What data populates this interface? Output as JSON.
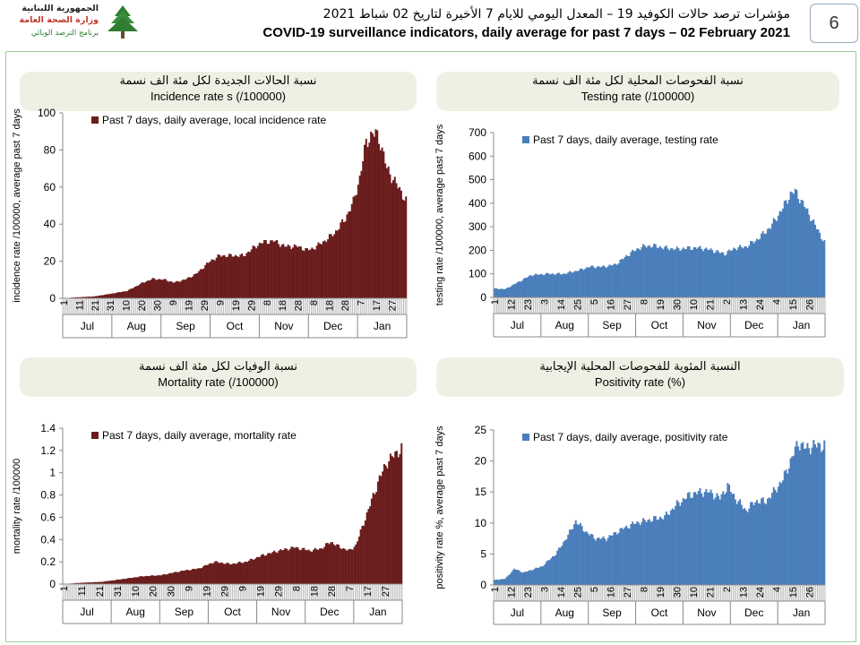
{
  "header": {
    "org_line1": "الجمهورية اللبنانية",
    "org_line2": "وزارة الصحة العامة",
    "org_line3": "برنامج الترصد الوبائي",
    "title_ar": "مؤشرات ترصد حالات الكوفيد 19 – المعدل اليومي للايام 7 الأخيرة لتاريخ 02 شباط 2021",
    "title_en": "COVID-19 surveillance indicators, daily average for past 7 days – 02 February 2021",
    "page_number": "6"
  },
  "panels": {
    "incidence": {
      "caption_ar": "نسبة الحالات الجديدة لكل مئة الف نسمة",
      "caption_en": "Incidence rate s  (/100000)"
    },
    "testing": {
      "caption_ar": "نسبة الفحوصات المحلية لكل مئة الف نسمة",
      "caption_en": "Testing rate (/100000)"
    },
    "mortality": {
      "caption_ar": "نسبة الوفيات لكل مئة الف نسمة",
      "caption_en": "Mortality rate (/100000)"
    },
    "positivity": {
      "caption_ar": "النسبة المئوية للفحوصات المحلية الإيجابية",
      "caption_en": "Positivity rate (%)"
    }
  },
  "chart_data": [
    {
      "id": "incidence",
      "type": "bar",
      "color": "#6b1d1d",
      "series_name": "Past 7 days, daily average, local incidence rate",
      "ylabel": "incidence rate /100000, average past 7 days",
      "ylim": [
        0,
        100
      ],
      "yticks": [
        0,
        20,
        40,
        60,
        80,
        100
      ],
      "day_ticks": [
        "1",
        "11",
        "21",
        "31",
        "10",
        "20",
        "30",
        "9",
        "19",
        "29",
        "9",
        "19",
        "29",
        "8",
        "18",
        "28",
        "8",
        "18",
        "28",
        "7",
        "17",
        "27"
      ],
      "months": [
        "Jul",
        "Aug",
        "Sep",
        "Oct",
        "Nov",
        "Dec",
        "Jan"
      ],
      "x_range": [
        "2020-07-01",
        "2021-02-01"
      ],
      "keypoints": [
        [
          "2020-07-01",
          0
        ],
        [
          "2020-07-08",
          0.5
        ],
        [
          "2020-07-20",
          1
        ],
        [
          "2020-07-31",
          2.5
        ],
        [
          "2020-08-10",
          4
        ],
        [
          "2020-08-20",
          8.5
        ],
        [
          "2020-08-26",
          10.5
        ],
        [
          "2020-09-03",
          10
        ],
        [
          "2020-09-08",
          8.5
        ],
        [
          "2020-09-15",
          10
        ],
        [
          "2020-09-22",
          13
        ],
        [
          "2020-10-01",
          20
        ],
        [
          "2020-10-07",
          23
        ],
        [
          "2020-10-14",
          23
        ],
        [
          "2020-10-22",
          23
        ],
        [
          "2020-10-28",
          27
        ],
        [
          "2020-11-02",
          30
        ],
        [
          "2020-11-10",
          31
        ],
        [
          "2020-11-17",
          28
        ],
        [
          "2020-11-25",
          28
        ],
        [
          "2020-12-01",
          26
        ],
        [
          "2020-12-05",
          27
        ],
        [
          "2020-12-12",
          31
        ],
        [
          "2020-12-18",
          35
        ],
        [
          "2020-12-25",
          43
        ],
        [
          "2020-12-30",
          52
        ],
        [
          "2021-01-03",
          65
        ],
        [
          "2021-01-07",
          84
        ],
        [
          "2021-01-10",
          88
        ],
        [
          "2021-01-13",
          89
        ],
        [
          "2021-01-16",
          84
        ],
        [
          "2021-01-20",
          70
        ],
        [
          "2021-01-25",
          63
        ],
        [
          "2021-02-01",
          53
        ]
      ]
    },
    {
      "id": "testing",
      "type": "bar",
      "color": "#4a7ebb",
      "series_name": "Past 7 days, daily average, testing rate",
      "ylabel": "testing rate /100000, average past 7 days",
      "ylim": [
        0,
        700
      ],
      "yticks": [
        0,
        100,
        200,
        300,
        400,
        500,
        600,
        700
      ],
      "day_ticks": [
        "1",
        "12",
        "23",
        "3",
        "14",
        "25",
        "5",
        "16",
        "27",
        "8",
        "19",
        "30",
        "10",
        "21",
        "2",
        "13",
        "24",
        "4",
        "15",
        "26"
      ],
      "months": [
        "Jul",
        "Aug",
        "Sep",
        "Oct",
        "Nov",
        "Dec",
        "Jan"
      ],
      "x_range": [
        "2020-07-01",
        "2021-02-01"
      ],
      "keypoints": [
        [
          "2020-07-01",
          38
        ],
        [
          "2020-07-08",
          35
        ],
        [
          "2020-07-18",
          70
        ],
        [
          "2020-07-25",
          95
        ],
        [
          "2020-08-05",
          100
        ],
        [
          "2020-08-15",
          100
        ],
        [
          "2020-08-25",
          115
        ],
        [
          "2020-09-01",
          130
        ],
        [
          "2020-09-10",
          130
        ],
        [
          "2020-09-18",
          140
        ],
        [
          "2020-09-28",
          190
        ],
        [
          "2020-10-05",
          215
        ],
        [
          "2020-10-12",
          220
        ],
        [
          "2020-10-20",
          210
        ],
        [
          "2020-10-28",
          205
        ],
        [
          "2020-11-05",
          210
        ],
        [
          "2020-11-12",
          210
        ],
        [
          "2020-11-20",
          200
        ],
        [
          "2020-11-28",
          185
        ],
        [
          "2020-12-05",
          210
        ],
        [
          "2020-12-12",
          215
        ],
        [
          "2020-12-20",
          250
        ],
        [
          "2020-12-28",
          300
        ],
        [
          "2021-01-05",
          380
        ],
        [
          "2021-01-10",
          440
        ],
        [
          "2021-01-13",
          450
        ],
        [
          "2021-01-18",
          400
        ],
        [
          "2021-01-24",
          330
        ],
        [
          "2021-02-01",
          235
        ]
      ]
    },
    {
      "id": "mortality",
      "type": "bar",
      "color": "#6b1d1d",
      "series_name": "Past 7 days, daily average, mortality rate",
      "ylabel": "mortality rate /100000",
      "ylim": [
        0,
        1.4
      ],
      "yticks": [
        0,
        0.2,
        0.4,
        0.6,
        0.8,
        1,
        1.2,
        1.4
      ],
      "day_ticks": [
        "1",
        "11",
        "21",
        "31",
        "10",
        "20",
        "30",
        "9",
        "19",
        "29",
        "9",
        "19",
        "29",
        "8",
        "18",
        "28",
        "7",
        "17",
        "27"
      ],
      "months": [
        "Jul",
        "Aug",
        "Sep",
        "Oct",
        "Nov",
        "Dec",
        "Jan"
      ],
      "x_range": [
        "2020-07-01",
        "2021-02-01"
      ],
      "keypoints": [
        [
          "2020-07-01",
          0
        ],
        [
          "2020-07-10",
          0.01
        ],
        [
          "2020-07-25",
          0.02
        ],
        [
          "2020-08-05",
          0.04
        ],
        [
          "2020-08-20",
          0.07
        ],
        [
          "2020-09-01",
          0.08
        ],
        [
          "2020-09-15",
          0.12
        ],
        [
          "2020-09-25",
          0.14
        ],
        [
          "2020-10-05",
          0.2
        ],
        [
          "2020-10-15",
          0.18
        ],
        [
          "2020-10-25",
          0.2
        ],
        [
          "2020-11-05",
          0.26
        ],
        [
          "2020-11-15",
          0.3
        ],
        [
          "2020-11-25",
          0.33
        ],
        [
          "2020-12-05",
          0.3
        ],
        [
          "2020-12-12",
          0.32
        ],
        [
          "2020-12-18",
          0.38
        ],
        [
          "2020-12-24",
          0.33
        ],
        [
          "2020-12-30",
          0.3
        ],
        [
          "2021-01-03",
          0.35
        ],
        [
          "2021-01-08",
          0.55
        ],
        [
          "2021-01-13",
          0.75
        ],
        [
          "2021-01-18",
          0.95
        ],
        [
          "2021-01-23",
          1.1
        ],
        [
          "2021-02-01",
          1.22
        ]
      ]
    },
    {
      "id": "positivity",
      "type": "bar",
      "color": "#4a7ebb",
      "series_name": "Past 7 days, daily average, positivity rate",
      "ylabel": "positivity rate %, average past 7 days",
      "ylim": [
        0,
        25
      ],
      "yticks": [
        0,
        5,
        10,
        15,
        20,
        25
      ],
      "day_ticks": [
        "1",
        "12",
        "23",
        "3",
        "14",
        "25",
        "5",
        "16",
        "27",
        "8",
        "19",
        "30",
        "10",
        "21",
        "2",
        "13",
        "24",
        "4",
        "15",
        "26"
      ],
      "months": [
        "Jul",
        "Aug",
        "Sep",
        "Oct",
        "Nov",
        "Dec",
        "Jan"
      ],
      "x_range": [
        "2020-07-01",
        "2021-02-01"
      ],
      "keypoints": [
        [
          "2020-07-01",
          0.8
        ],
        [
          "2020-07-08",
          1
        ],
        [
          "2020-07-14",
          2.6
        ],
        [
          "2020-07-20",
          2
        ],
        [
          "2020-08-01",
          3
        ],
        [
          "2020-08-10",
          5
        ],
        [
          "2020-08-18",
          8
        ],
        [
          "2020-08-23",
          10.3
        ],
        [
          "2020-08-30",
          8.5
        ],
        [
          "2020-09-05",
          7.5
        ],
        [
          "2020-09-12",
          7.5
        ],
        [
          "2020-09-22",
          9
        ],
        [
          "2020-10-01",
          10
        ],
        [
          "2020-10-10",
          10.5
        ],
        [
          "2020-10-20",
          11
        ],
        [
          "2020-10-28",
          13
        ],
        [
          "2020-11-05",
          14.5
        ],
        [
          "2020-11-12",
          15
        ],
        [
          "2020-11-18",
          15
        ],
        [
          "2020-11-25",
          14
        ],
        [
          "2020-11-30",
          16
        ],
        [
          "2020-12-05",
          14
        ],
        [
          "2020-12-12",
          12
        ],
        [
          "2020-12-18",
          13.5
        ],
        [
          "2020-12-25",
          13.5
        ],
        [
          "2020-12-30",
          15
        ],
        [
          "2021-01-05",
          17
        ],
        [
          "2021-01-10",
          20
        ],
        [
          "2021-01-15",
          23
        ],
        [
          "2021-01-20",
          22
        ],
        [
          "2021-01-25",
          22.5
        ],
        [
          "2021-02-01",
          22.5
        ]
      ]
    }
  ]
}
